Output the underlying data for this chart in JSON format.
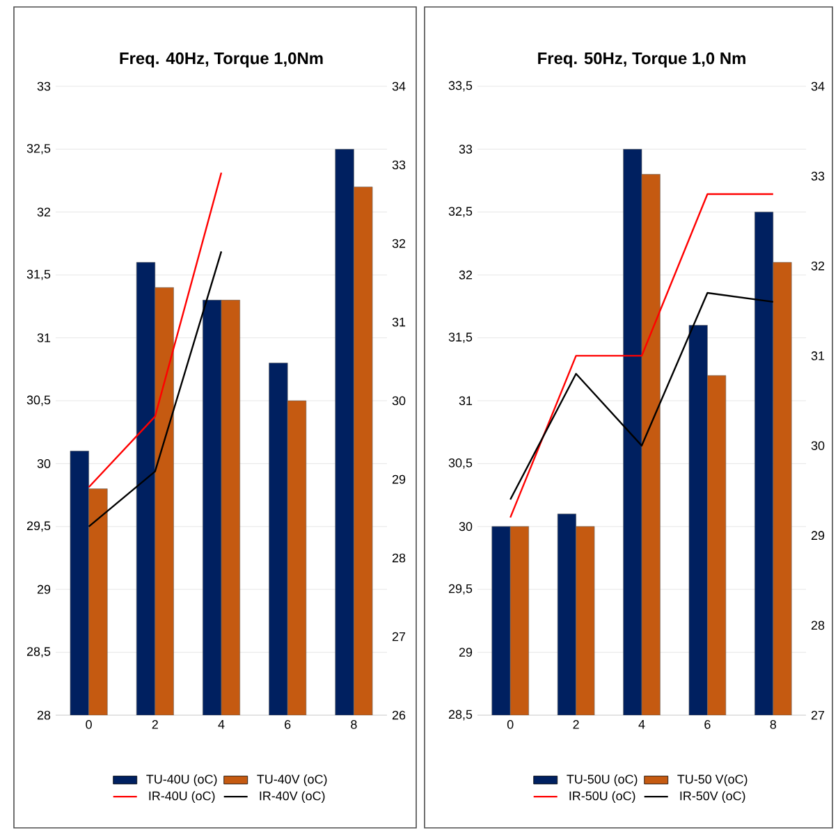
{
  "chart_data": [
    {
      "type": "bar",
      "title": "Freq. 40Hz, Torque 1,0Nm",
      "categories": [
        "0",
        "2",
        "4",
        "6",
        "8"
      ],
      "series": [
        {
          "name": "TU-40U (oC)",
          "color": "#002060",
          "values": [
            30.1,
            31.6,
            31.3,
            30.8,
            32.5
          ]
        },
        {
          "name": "TU-40V (oC)",
          "color": "#c55a11",
          "values": [
            29.8,
            31.4,
            31.3,
            30.5,
            32.2
          ]
        },
        {
          "name": "IR-40U (oC)",
          "type": "line",
          "axis": "y2",
          "color": "#ff0000",
          "values": [
            28.9,
            29.8,
            32.9,
            null,
            null
          ]
        },
        {
          "name": "IR-40V (oC)",
          "type": "line",
          "axis": "y2",
          "color": "#000000",
          "values": [
            28.4,
            29.1,
            31.9,
            null,
            null
          ]
        }
      ],
      "ylim": [
        28,
        33
      ],
      "yticks": [
        28,
        {
          "value": 28.5,
          "label": "28,5"
        },
        29,
        {
          "value": 29.5,
          "label": "29,5"
        },
        30,
        {
          "value": 30.5,
          "label": "30,5"
        },
        31,
        {
          "value": 31.5,
          "label": "31,5"
        },
        32,
        {
          "value": 32.5,
          "label": "32,5"
        },
        33
      ],
      "y2lim": [
        26,
        34
      ],
      "y2ticks": [
        26,
        27,
        28,
        29,
        30,
        31,
        32,
        33,
        34
      ],
      "grid": "y",
      "legend": "bottom"
    },
    {
      "type": "bar",
      "title": "Freq. 50Hz, Torque 1,0 Nm",
      "categories": [
        "0",
        "2",
        "4",
        "6",
        "8"
      ],
      "series": [
        {
          "name": "TU-50U (oC)",
          "color": "#002060",
          "values": [
            30.0,
            30.1,
            33.0,
            31.6,
            32.5
          ]
        },
        {
          "name": "TU-50 V(oC)",
          "color": "#c55a11",
          "values": [
            30.0,
            30.0,
            32.8,
            31.2,
            32.1
          ]
        },
        {
          "name": "IR-50U (oC)",
          "type": "line",
          "axis": "y2",
          "color": "#ff0000",
          "values": [
            29.2,
            31.0,
            31.0,
            32.8,
            32.8
          ]
        },
        {
          "name": "IR-50V (oC)",
          "type": "line",
          "axis": "y2",
          "color": "#000000",
          "values": [
            29.4,
            30.8,
            30.0,
            31.7,
            31.6
          ]
        }
      ],
      "ylim": [
        28.5,
        33.5
      ],
      "yticks": [
        {
          "value": 28.5,
          "label": "28,5"
        },
        29,
        {
          "value": 29.5,
          "label": "29,5"
        },
        30,
        {
          "value": 30.5,
          "label": "30,5"
        },
        31,
        {
          "value": 31.5,
          "label": "31,5"
        },
        32,
        {
          "value": 32.5,
          "label": "32,5"
        },
        33,
        {
          "value": 33.5,
          "label": "33,5"
        }
      ],
      "y2lim": [
        27,
        34
      ],
      "y2ticks": [
        27,
        28,
        29,
        30,
        31,
        32,
        33,
        34
      ],
      "grid": "y",
      "legend": "bottom"
    }
  ]
}
